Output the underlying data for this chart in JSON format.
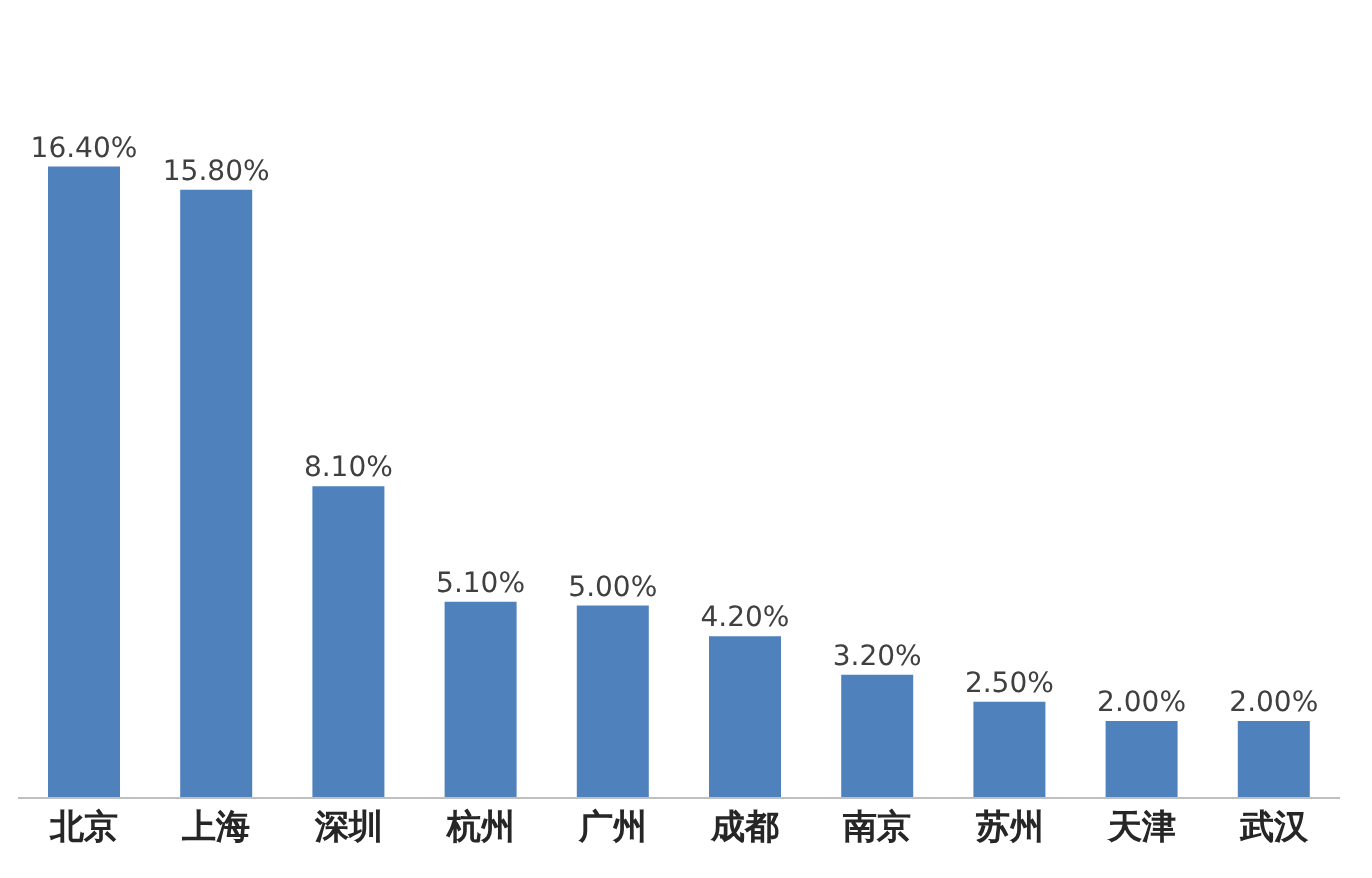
{
  "chart_data": {
    "type": "bar",
    "categories": [
      "北京",
      "上海",
      "深圳",
      "杭州",
      "广州",
      "成都",
      "南京",
      "苏州",
      "天津",
      "武汉"
    ],
    "values": [
      16.4,
      15.8,
      8.1,
      5.1,
      5.0,
      4.2,
      3.2,
      2.5,
      2.0,
      2.0
    ],
    "value_labels": [
      "16.40%",
      "15.80%",
      "8.10%",
      "5.10%",
      "5.00%",
      "4.20%",
      "3.20%",
      "2.50%",
      "2.00%",
      "2.00%"
    ],
    "color": "#4f81bd",
    "tick_labels": "x"
  }
}
